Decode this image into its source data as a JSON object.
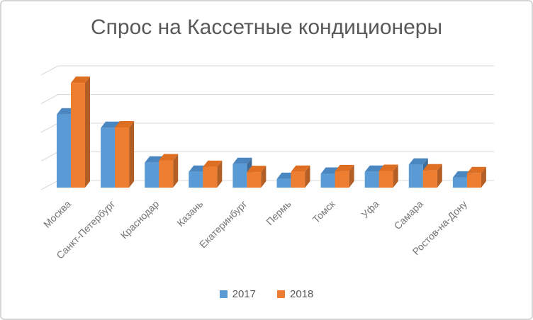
{
  "chart_data": {
    "type": "bar",
    "style": "3d-clustered-column",
    "title": "Спрос на Кассетные кондиционеры",
    "categories": [
      "Москва",
      "Санкт-Петербург",
      "Краснодар",
      "Казань",
      "Екатеринбург",
      "Пермь",
      "Томск",
      "Уфа",
      "Самара",
      "Ростов-на-Дону"
    ],
    "series": [
      {
        "name": "2017",
        "color": "#5B9BD5",
        "color_top": "#4A86BF",
        "color_side": "#3E6E99",
        "values": [
          2.55,
          2.08,
          0.87,
          0.55,
          0.82,
          0.3,
          0.48,
          0.55,
          0.8,
          0.35
        ]
      },
      {
        "name": "2018",
        "color": "#ED7D31",
        "color_top": "#DE6F22",
        "color_side": "#B25E25",
        "values": [
          3.65,
          2.1,
          0.95,
          0.72,
          0.54,
          0.55,
          0.57,
          0.58,
          0.6,
          0.5
        ]
      }
    ],
    "ylim": [
      0,
      4
    ],
    "gridline_interval": 1,
    "y_axis_labels_visible": false,
    "grid": true,
    "legend_position": "bottom",
    "value_note": "values expressed in gridline intervals; chart shows no y-axis tick labels"
  },
  "colors": {
    "title_text": "#595959",
    "axis_label_text": "#757575",
    "legend_text": "#595959",
    "gridline": "#D9D9D9",
    "frame_border": "#D6D6D6",
    "background": "#FFFFFF"
  }
}
